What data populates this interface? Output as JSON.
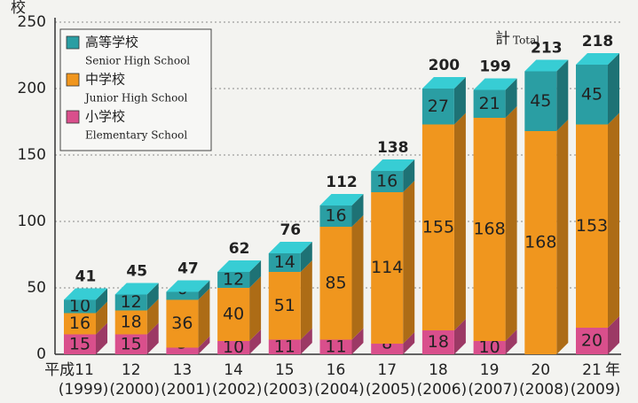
{
  "chart_data": {
    "type": "stacked_bar_3d",
    "y_label": "校",
    "x_unit": "年",
    "categories": [
      "平成11",
      "12",
      "13",
      "14",
      "15",
      "16",
      "17",
      "18",
      "19",
      "20",
      "21"
    ],
    "categories_sub": [
      "(1999)",
      "(2000)",
      "(2001)",
      "(2002)",
      "(2003)",
      "(2004)",
      "(2005)",
      "(2006)",
      "(2007)",
      "(2008)",
      "(2009)"
    ],
    "series": [
      {
        "name": "小学校",
        "name_en": "Elementary School",
        "color": "#d94f8c",
        "values": [
          15,
          15,
          5,
          10,
          11,
          11,
          8,
          18,
          10,
          0,
          20
        ]
      },
      {
        "name": "中学校",
        "name_en": "Junior High School",
        "color": "#f0961e",
        "values": [
          16,
          18,
          36,
          40,
          51,
          85,
          114,
          155,
          168,
          168,
          153
        ]
      },
      {
        "name": "高等学校",
        "name_en": "Senior High School",
        "color": "#2a9ea3",
        "values": [
          10,
          12,
          6,
          12,
          14,
          16,
          16,
          27,
          21,
          45,
          45
        ]
      }
    ],
    "total_label": "計",
    "total_label_en": "Total",
    "totals": [
      41,
      45,
      47,
      62,
      76,
      112,
      138,
      200,
      199,
      213,
      218
    ],
    "ylim": [
      0,
      250
    ],
    "yticks": [
      0,
      50,
      100,
      150,
      200,
      250
    ],
    "grid": true
  }
}
